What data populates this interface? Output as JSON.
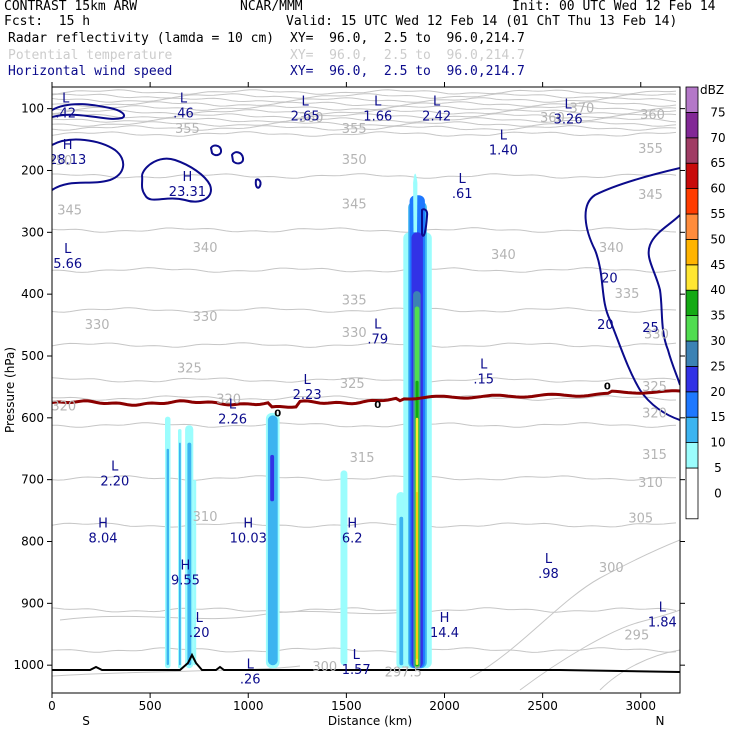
{
  "header": {
    "title": "CONTRAST 15km ARW",
    "center": "NCAR/MMM",
    "init": "Init: 00 UTC Wed 12 Feb 14",
    "fcst": "Fcst:  15 h",
    "valid": "Valid: 15 UTC Wed 12 Feb 14 (01 ChT Thu 13 Feb 14)"
  },
  "fields": [
    {
      "name": "Radar reflectivity (lamda = 10 cm)",
      "xy": "XY=  96.0,  2.5 to  96.0,214.7",
      "color": "#000000"
    },
    {
      "name": "Potential temperature",
      "xy": "XY=  96.0,  2.5 to  96.0,214.7",
      "color": "#c8c8c8"
    },
    {
      "name": "Horizontal wind speed",
      "xy": "XY=  96.0,  2.5 to  96.0,214.7",
      "color": "#0b0b8c"
    }
  ],
  "chart_data": {
    "type": "cross-section",
    "xlabel": "Distance (km)",
    "ylabel": "Pressure (hPa)",
    "xlim": [
      0,
      3200
    ],
    "ylim": [
      1045,
      65
    ],
    "x_ticks": [
      0,
      500,
      1000,
      1500,
      2000,
      2500,
      3000
    ],
    "y_ticks": [
      100,
      200,
      300,
      400,
      500,
      600,
      700,
      800,
      900,
      1000
    ],
    "x_end_labels": {
      "left": "S",
      "right": "N"
    },
    "colorbar": {
      "unit": "dBZ",
      "levels": [
        0,
        5,
        10,
        15,
        20,
        25,
        30,
        35,
        40,
        45,
        50,
        55,
        60,
        65,
        70,
        75
      ],
      "colors": [
        "#ffffff",
        "#9bfdfd",
        "#3cb4f0",
        "#1e78ff",
        "#3232e6",
        "#3c82b4",
        "#50dc50",
        "#14aa14",
        "#ffe632",
        "#ffb400",
        "#ff8c3c",
        "#ff3c00",
        "#c80a0a",
        "#a03c64",
        "#822896",
        "#b478c8"
      ]
    },
    "theta_labels": [
      {
        "v": "370",
        "x": 2700,
        "p": 100
      },
      {
        "v": "360",
        "x": 1320,
        "p": 115
      },
      {
        "v": "360",
        "x": 2550,
        "p": 115
      },
      {
        "v": "360",
        "x": 3060,
        "p": 110
      },
      {
        "v": "355",
        "x": 690,
        "p": 133
      },
      {
        "v": "355",
        "x": 1540,
        "p": 133
      },
      {
        "v": "355",
        "x": 3050,
        "p": 165
      },
      {
        "v": "350",
        "x": 40,
        "p": 185
      },
      {
        "v": "350",
        "x": 1540,
        "p": 183
      },
      {
        "v": "345",
        "x": 90,
        "p": 265
      },
      {
        "v": "345",
        "x": 1540,
        "p": 255
      },
      {
        "v": "345",
        "x": 3050,
        "p": 240
      },
      {
        "v": "340",
        "x": 780,
        "p": 325
      },
      {
        "v": "340",
        "x": 2300,
        "p": 337
      },
      {
        "v": "340",
        "x": 2850,
        "p": 325
      },
      {
        "v": "335",
        "x": 1540,
        "p": 410
      },
      {
        "v": "335",
        "x": 2930,
        "p": 400
      },
      {
        "v": "330",
        "x": 230,
        "p": 450
      },
      {
        "v": "330",
        "x": 780,
        "p": 437
      },
      {
        "v": "330",
        "x": 1540,
        "p": 463
      },
      {
        "v": "330",
        "x": 3080,
        "p": 465
      },
      {
        "v": "325",
        "x": 700,
        "p": 520
      },
      {
        "v": "325",
        "x": 1530,
        "p": 545
      },
      {
        "v": "325",
        "x": 3070,
        "p": 550
      },
      {
        "v": "320",
        "x": 60,
        "p": 582
      },
      {
        "v": "320",
        "x": 900,
        "p": 570
      },
      {
        "v": "320",
        "x": 3070,
        "p": 593
      },
      {
        "v": "315",
        "x": 1580,
        "p": 665
      },
      {
        "v": "315",
        "x": 3070,
        "p": 660
      },
      {
        "v": "310",
        "x": 780,
        "p": 760
      },
      {
        "v": "310",
        "x": 3050,
        "p": 705
      },
      {
        "v": "305",
        "x": 3000,
        "p": 763
      },
      {
        "v": "300",
        "x": 1390,
        "p": 1003
      },
      {
        "v": "300",
        "x": 2850,
        "p": 843
      },
      {
        "v": "297.5",
        "x": 1790,
        "p": 1012
      },
      {
        "v": "295",
        "x": 2980,
        "p": 952
      }
    ],
    "pressure_extrema": [
      {
        "t": "L",
        "v": ".42",
        "x": 70,
        "p": 95
      },
      {
        "t": "L",
        "v": ".46",
        "x": 670,
        "p": 95
      },
      {
        "t": "L",
        "v": "2.65",
        "x": 1290,
        "p": 100
      },
      {
        "t": "L",
        "v": "1.66",
        "x": 1660,
        "p": 100
      },
      {
        "t": "L",
        "v": "2.42",
        "x": 1960,
        "p": 100
      },
      {
        "t": "L",
        "v": "3.26",
        "x": 2630,
        "p": 105
      },
      {
        "t": "L",
        "v": "1.40",
        "x": 2300,
        "p": 155
      },
      {
        "t": "H",
        "v": "28.13",
        "x": 80,
        "p": 170
      },
      {
        "t": "H",
        "v": "23.31",
        "x": 690,
        "p": 222
      },
      {
        "t": "L",
        "v": ".61",
        "x": 2090,
        "p": 225
      },
      {
        "t": "L",
        "v": "5.66",
        "x": 80,
        "p": 338
      },
      {
        "t": "L",
        "v": ".79",
        "x": 1660,
        "p": 460
      },
      {
        "t": "L",
        "v": ".15",
        "x": 2200,
        "p": 525
      },
      {
        "t": "L",
        "v": "2.23",
        "x": 1300,
        "p": 550
      },
      {
        "t": "L",
        "v": "2.26",
        "x": 920,
        "p": 590
      },
      {
        "t": "L",
        "v": "2.20",
        "x": 320,
        "p": 690
      },
      {
        "t": "H",
        "v": "8.04",
        "x": 260,
        "p": 782
      },
      {
        "t": "H",
        "v": "10.03",
        "x": 1000,
        "p": 782
      },
      {
        "t": "H",
        "v": "6.2",
        "x": 1530,
        "p": 782
      },
      {
        "t": "H",
        "v": "9.55",
        "x": 680,
        "p": 850
      },
      {
        "t": "L",
        "v": ".98",
        "x": 2530,
        "p": 840
      },
      {
        "t": "L",
        "v": ".20",
        "x": 750,
        "p": 935
      },
      {
        "t": "H",
        "v": "14.4",
        "x": 2000,
        "p": 935
      },
      {
        "t": "L",
        "v": "1.84",
        "x": 3110,
        "p": 918
      },
      {
        "t": "L",
        "v": ".26",
        "x": 1010,
        "p": 1010
      },
      {
        "t": "L",
        "v": "1.57",
        "x": 1550,
        "p": 995
      }
    ],
    "wind_contours": [
      {
        "v": "20",
        "x": 2820,
        "p": 450
      },
      {
        "v": "20",
        "x": 2840,
        "p": 375
      },
      {
        "v": "25",
        "x": 3050,
        "p": 455
      }
    ],
    "freezing_line_labels": [
      {
        "v": "0",
        "x": 1150,
        "p": 591
      },
      {
        "v": "0",
        "x": 1660,
        "p": 578
      },
      {
        "v": "0",
        "x": 2830,
        "p": 548
      }
    ]
  }
}
